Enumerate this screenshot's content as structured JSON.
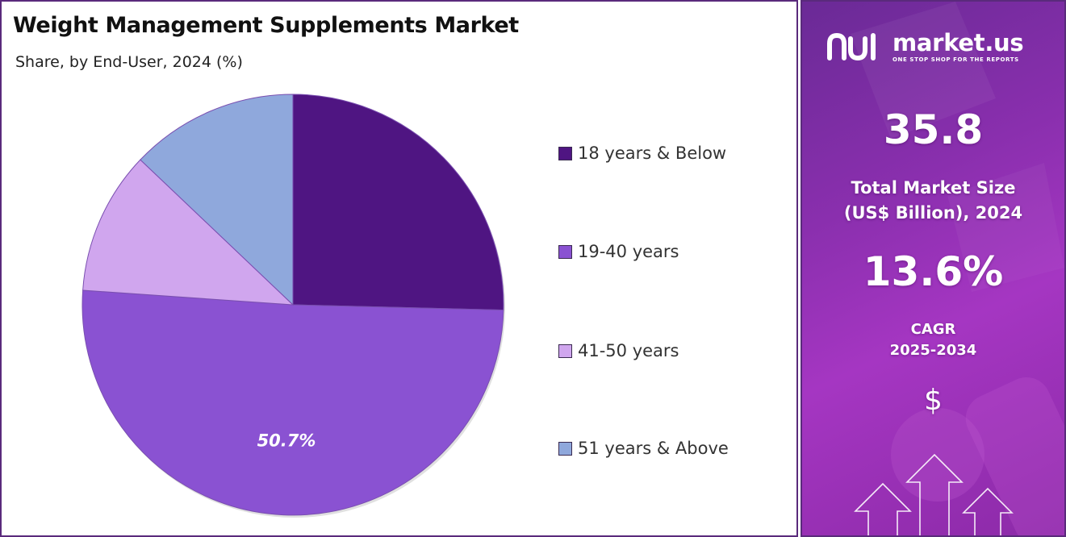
{
  "chart_data": {
    "type": "pie",
    "title": "Weight Management  Supplements  Market",
    "subtitle": "Share, by End-User, 2024 (%)",
    "slices": [
      {
        "label": "18 years & Below",
        "value": 25.4,
        "color": "#4f1582"
      },
      {
        "label": "19-40 years",
        "value": 50.7,
        "color": "#8a52d2",
        "data_label": "50.7%"
      },
      {
        "label": "41-50 years",
        "value": 11.0,
        "color": "#d0a6ee"
      },
      {
        "label": "51 years & Above",
        "value": 12.9,
        "color": "#8fa8dc"
      }
    ],
    "start_angle_deg": 0,
    "direction": "clockwise",
    "legend_position": "right"
  },
  "info_panel": {
    "brand_name": "market.us",
    "brand_tagline": "ONE STOP SHOP FOR THE REPORTS",
    "market_size_value": "35.8",
    "market_size_label_line1": "Total Market Size",
    "market_size_label_line2": "(US$ Billion), 2024",
    "cagr_value": "13.6%",
    "cagr_label_line1": "CAGR",
    "cagr_label_line2": "2025-2034",
    "dollar_icon": "$"
  },
  "colors": {
    "panel_border": "#5a2a7c",
    "panel_gradient_start": "#6a2a96",
    "panel_gradient_end": "#a536c2"
  },
  "icons": [
    "market-us-logo-icon",
    "dollar-icon",
    "up-arrow-icon"
  ]
}
